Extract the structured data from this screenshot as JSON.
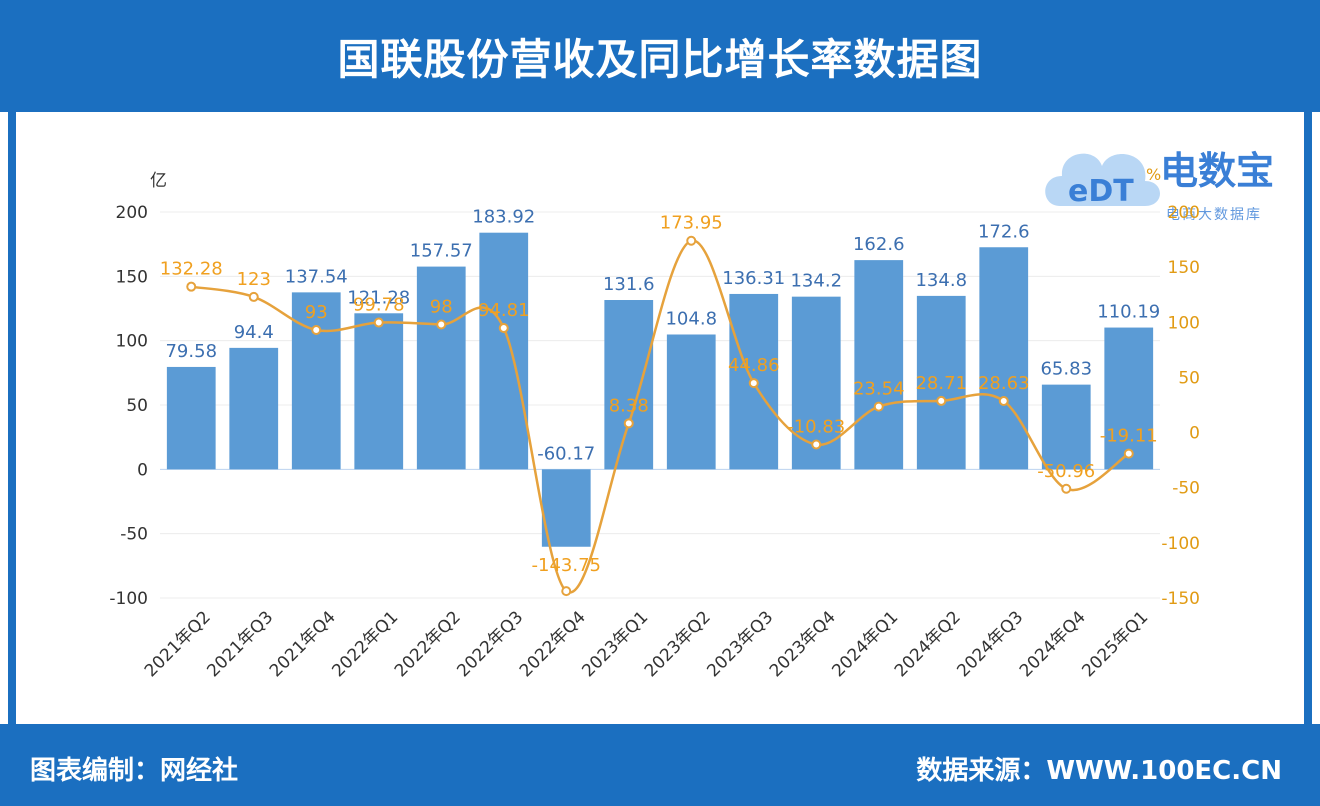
{
  "header": {
    "title": "国联股份营收及同比增长率数据图"
  },
  "footer": {
    "left": "图表编制：网经社",
    "right": "数据来源：WWW.100EC.CN"
  },
  "logo": {
    "brand": "电数宝",
    "badge": "eDT",
    "sub": "电商大数据库"
  },
  "colors": {
    "bar": "#5b9bd5",
    "line": "#e6a23c",
    "line_label": "#f0a020",
    "bar_label": "#3c6fb0",
    "axis_left_text": "#333333",
    "axis_right_text": "#e19b14"
  },
  "chart_data": {
    "type": "bar",
    "categories": [
      "2021年Q2",
      "2021年Q3",
      "2021年Q4",
      "2022年Q1",
      "2022年Q2",
      "2022年Q3",
      "2022年Q4",
      "2023年Q1",
      "2023年Q2",
      "2023年Q3",
      "2023年Q4",
      "2024年Q1",
      "2024年Q2",
      "2024年Q3",
      "2024年Q4",
      "2025年Q1"
    ],
    "series": [
      {
        "type": "bar",
        "axis": "left",
        "values": [
          79.58,
          94.4,
          137.54,
          121.28,
          157.57,
          183.92,
          -60.17,
          131.6,
          104.8,
          136.31,
          134.2,
          162.6,
          134.8,
          172.6,
          65.83,
          110.19
        ]
      },
      {
        "type": "line",
        "axis": "right",
        "values": [
          132.28,
          123,
          93,
          99.78,
          98,
          94.81,
          -143.75,
          8.38,
          173.95,
          44.86,
          -10.83,
          23.54,
          28.71,
          28.63,
          -50.96,
          -19.11
        ]
      }
    ],
    "ylabel_left": "亿",
    "ylabel_right": "%",
    "ylim_left": [
      -100,
      200
    ],
    "ylim_right": [
      -150,
      200
    ],
    "yticks_left": [
      "200",
      "150",
      "100",
      "50",
      "0",
      "-50",
      "-100"
    ],
    "yticks_right": [
      "200",
      "150",
      "100",
      "50",
      "0",
      "-50",
      "-100",
      "-150"
    ],
    "bar_labels": [
      "79.58",
      "94.4",
      "137.54",
      "121.28",
      "157.57",
      "183.92",
      "-60.17",
      "131.6",
      "104.8",
      "136.31",
      "134.2",
      "162.6",
      "134.8",
      "172.6",
      "65.83",
      "110.19"
    ],
    "line_labels": [
      "132.28",
      "123",
      "93",
      "99.78",
      "98",
      "94.81",
      "-143.75",
      "8.38",
      "173.95",
      "44.86",
      "-10.83",
      "23.54",
      "28.71",
      "28.63",
      "-50.96",
      "-19.11"
    ],
    "grid": true
  }
}
